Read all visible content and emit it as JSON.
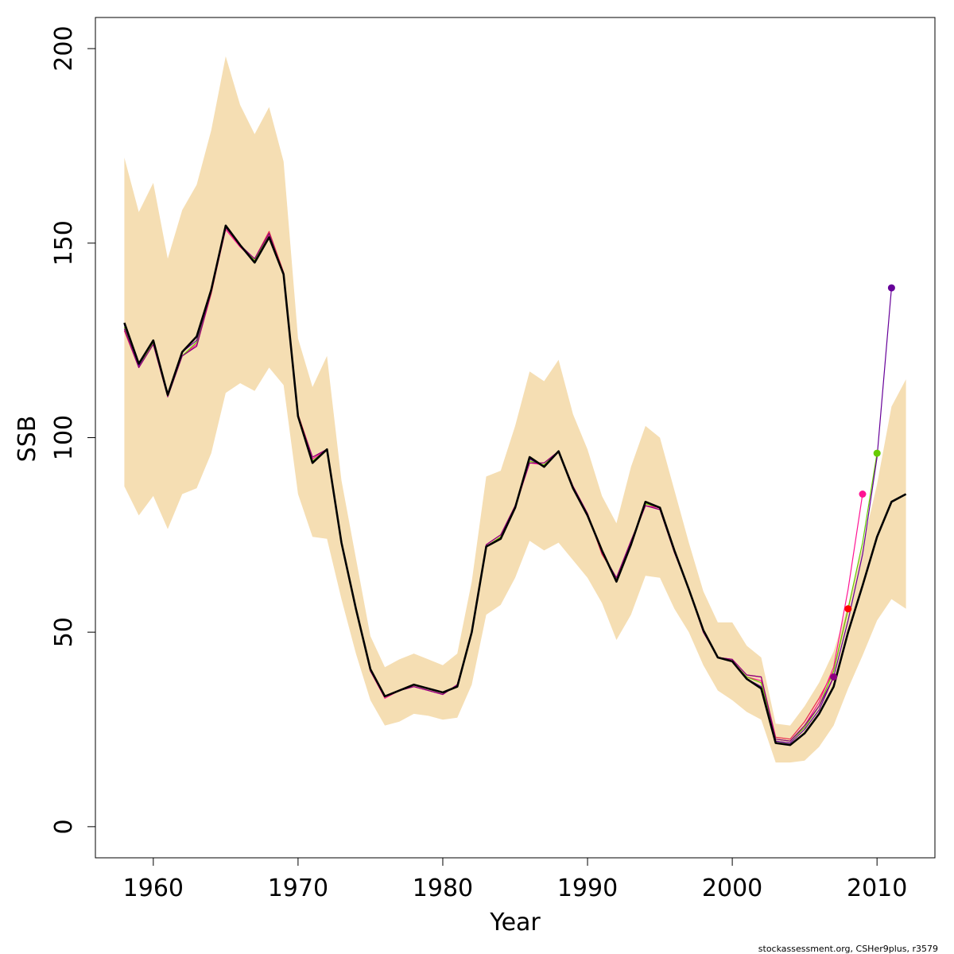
{
  "chart_data": {
    "type": "line",
    "xlabel": "Year",
    "ylabel": "SSB",
    "xlim": [
      1956,
      2014
    ],
    "ylim": [
      -8,
      208
    ],
    "x_ticks": [
      1960,
      1970,
      1980,
      1990,
      2000,
      2010
    ],
    "y_ticks": [
      0,
      50,
      100,
      150,
      200
    ],
    "credit": "stockassessment.org, CSHer9plus, r3579",
    "colors": {
      "band": "#f5deb3",
      "main": "#000000",
      "retro": "#e8254f"
    },
    "years": [
      1958,
      1959,
      1960,
      1961,
      1962,
      1963,
      1964,
      1965,
      1966,
      1967,
      1968,
      1969,
      1970,
      1971,
      1972,
      1973,
      1974,
      1975,
      1976,
      1977,
      1978,
      1979,
      1980,
      1981,
      1982,
      1983,
      1984,
      1985,
      1986,
      1987,
      1988,
      1989,
      1990,
      1991,
      1992,
      1993,
      1994,
      1995,
      1996,
      1997,
      1998,
      1999,
      2000,
      2001,
      2002,
      2003,
      2004,
      2005,
      2006,
      2007,
      2008,
      2009,
      2010,
      2011,
      2012
    ],
    "ssb": [
      129.5,
      119,
      125,
      111,
      122,
      126,
      138,
      154.5,
      149.5,
      145,
      151.5,
      142,
      105.5,
      93.5,
      97,
      73,
      56,
      40.5,
      33.5,
      35,
      36.5,
      35.5,
      34.5,
      36,
      50,
      72,
      74,
      82,
      95,
      92.5,
      96.5,
      87,
      80,
      71,
      63,
      72.5,
      83.5,
      82,
      71,
      61,
      50.5,
      43.5,
      42.5,
      38,
      35.5,
      21.5,
      21,
      24,
      29,
      36,
      50,
      62,
      74.5,
      83.5,
      85.5
    ],
    "ci_upper": [
      172,
      158,
      165.5,
      146,
      158.5,
      165,
      179,
      198,
      185.5,
      178,
      185,
      171,
      125.5,
      113,
      121,
      89,
      69,
      49,
      41,
      43,
      44.5,
      43,
      41.5,
      44.5,
      63,
      90,
      91.5,
      103,
      117,
      114.5,
      120,
      106,
      97,
      85,
      78,
      92.5,
      103,
      100,
      86.5,
      73,
      60.5,
      52.5,
      52.5,
      46.5,
      43.5,
      26.5,
      26,
      31,
      37,
      45,
      57,
      72,
      88,
      108,
      115
    ],
    "ci_lower": [
      87.5,
      80,
      85,
      76.5,
      85.5,
      87,
      96,
      111.5,
      114,
      112,
      118,
      113.5,
      85.5,
      74.5,
      74,
      58.5,
      44.5,
      32.5,
      26,
      27,
      29,
      28.5,
      27.5,
      28,
      36.5,
      54.5,
      57,
      64,
      73.5,
      71,
      73,
      68.5,
      64,
      57.5,
      48,
      54.5,
      64.5,
      64,
      56,
      50,
      41.5,
      35,
      32.5,
      29.5,
      27.5,
      16.5,
      16.5,
      17,
      20.5,
      26,
      35.5,
      44,
      53,
      58.5,
      56
    ],
    "series": [
      {
        "color": "#e8254f",
        "years": [
          1958,
          1959,
          1960,
          1961,
          1962,
          1963,
          1964,
          1965,
          1966,
          1967,
          1968,
          1969,
          1970,
          1971,
          1972,
          1973,
          1974,
          1975,
          1976,
          1977,
          1978,
          1979,
          1980,
          1981,
          1982,
          1983,
          1984,
          1985,
          1986,
          1987,
          1988,
          1989,
          1990,
          1991,
          1992,
          1993,
          1994,
          1995,
          1996,
          1997,
          1998,
          1999,
          2000,
          2001,
          2002,
          2003,
          2004,
          2005,
          2006,
          2007,
          2008
        ],
        "values": [
          127.5,
          118,
          124,
          110.5,
          121,
          123.5,
          137,
          154,
          149,
          146,
          153,
          142.5,
          106,
          95,
          97,
          73,
          56,
          40,
          33.5,
          35,
          36,
          35,
          34,
          36.5,
          50,
          72.5,
          75,
          82.5,
          93.5,
          93.5,
          96.5,
          87.5,
          80.5,
          70,
          64,
          73.5,
          82.5,
          81.5,
          70.5,
          61,
          50,
          43.5,
          43,
          39,
          38.5,
          23,
          22.5,
          27,
          33,
          40,
          56
        ]
      },
      {
        "color": "#ff1493",
        "years": [
          1958,
          1959,
          1960,
          1961,
          1962,
          1963,
          1964,
          1965,
          1966,
          1967,
          1968,
          1969,
          1970,
          1971,
          1972,
          1973,
          1974,
          1975,
          1976,
          1977,
          1978,
          1979,
          1980,
          1981,
          1982,
          1983,
          1984,
          1985,
          1986,
          1987,
          1988,
          1989,
          1990,
          1991,
          1992,
          1993,
          1994,
          1995,
          1996,
          1997,
          1998,
          1999,
          2000,
          2001,
          2002,
          2003,
          2004,
          2005,
          2006,
          2007,
          2008,
          2009
        ],
        "values": [
          128,
          118.5,
          124.5,
          110.5,
          121,
          124,
          137.5,
          153.5,
          149,
          145.5,
          152,
          142,
          105.5,
          94.5,
          97,
          73,
          56,
          40,
          33,
          35,
          36,
          35,
          34,
          36.5,
          50,
          72,
          74.5,
          82,
          93.5,
          93,
          96.5,
          87.5,
          80.5,
          70.5,
          63.5,
          73,
          82.5,
          82,
          70.5,
          61,
          50,
          43.5,
          42.5,
          38.5,
          37.5,
          22.5,
          22,
          26,
          32,
          41,
          61,
          85.5
        ]
      },
      {
        "color": "#66cc00",
        "years": [
          1958,
          1959,
          1960,
          1961,
          1962,
          1963,
          1964,
          1965,
          1966,
          1967,
          1968,
          1969,
          1970,
          1971,
          1972,
          1973,
          1974,
          1975,
          1976,
          1977,
          1978,
          1979,
          1980,
          1981,
          1982,
          1983,
          1984,
          1985,
          1986,
          1987,
          1988,
          1989,
          1990,
          1991,
          1992,
          1993,
          1994,
          1995,
          1996,
          1997,
          1998,
          1999,
          2000,
          2001,
          2002,
          2003,
          2004,
          2005,
          2006,
          2007,
          2008,
          2009,
          2010
        ],
        "values": [
          128.5,
          118.5,
          124.5,
          110.5,
          121,
          124.5,
          137.5,
          154,
          149.5,
          145.5,
          152.5,
          142,
          105.5,
          94,
          97,
          73,
          56,
          40.5,
          33.5,
          35,
          36.5,
          35.5,
          34.5,
          36,
          50,
          72,
          74.5,
          82,
          94,
          93,
          96.5,
          87,
          80,
          71,
          63.5,
          72.5,
          83,
          82,
          71,
          61,
          50.5,
          43.5,
          42.5,
          38.5,
          37,
          22.5,
          22,
          25.5,
          31,
          40,
          56,
          73,
          96
        ]
      },
      {
        "color": "#660099",
        "years": [
          1958,
          1959,
          1960,
          1961,
          1962,
          1963,
          1964,
          1965,
          1966,
          1967,
          1968,
          1969,
          1970,
          1971,
          1972,
          1973,
          1974,
          1975,
          1976,
          1977,
          1978,
          1979,
          1980,
          1981,
          1982,
          1983,
          1984,
          1985,
          1986,
          1987,
          1988,
          1989,
          1990,
          1991,
          1992,
          1993,
          1994,
          1995,
          1996,
          1997,
          1998,
          1999,
          2000,
          2001,
          2002,
          2003,
          2004,
          2005,
          2006,
          2007,
          2008,
          2009,
          2010,
          2011
        ],
        "values": [
          129,
          118.5,
          125,
          111,
          122,
          125,
          138,
          154.5,
          149.5,
          145,
          151.5,
          142,
          105.5,
          93.5,
          97,
          73,
          56,
          40.5,
          33.5,
          35,
          36.5,
          35.5,
          34.5,
          36,
          50,
          72,
          74,
          82,
          94.5,
          92.5,
          96.5,
          87,
          80,
          71,
          63,
          72.5,
          83.5,
          82,
          71,
          61,
          50.5,
          43.5,
          42.5,
          38,
          36,
          22,
          21.5,
          25,
          30,
          38.5,
          53,
          70,
          95,
          138.5
        ]
      },
      {
        "color": "#8b0080",
        "years": [
          1958,
          1959,
          1960,
          1961,
          1962,
          1963,
          1964,
          1965,
          1966,
          1967,
          1968,
          1969,
          1970,
          1971,
          1972,
          1973,
          1974,
          1975,
          1976,
          1977,
          1978,
          1979,
          1980,
          1981,
          1982,
          1983,
          1984,
          1985,
          1986,
          1987,
          1988,
          1989,
          1990,
          1991,
          1992,
          1993,
          1994,
          1995,
          1996,
          1997,
          1998,
          1999,
          2000,
          2001,
          2002,
          2003,
          2004,
          2005,
          2006,
          2007
        ],
        "values": [
          128,
          118,
          124,
          110.5,
          121,
          123.5,
          137.5,
          154,
          149.5,
          146,
          152.5,
          142,
          105.5,
          95,
          97,
          73,
          56,
          40,
          33.5,
          35,
          36,
          35,
          34,
          36.5,
          50,
          72.5,
          75,
          82.5,
          93.5,
          93.5,
          96.5,
          87.5,
          80.5,
          70.5,
          64,
          73.5,
          82.5,
          81.5,
          70.5,
          61,
          50,
          43.5,
          43,
          39,
          38.5,
          22.5,
          22,
          26,
          31,
          38.5
        ]
      }
    ],
    "endpoints": [
      {
        "year": 2007,
        "value": 38.5,
        "color": "#8b0080"
      },
      {
        "year": 2008,
        "value": 56,
        "color": "#ff0000"
      },
      {
        "year": 2009,
        "value": 85.5,
        "color": "#ff1493"
      },
      {
        "year": 2010,
        "value": 96,
        "color": "#66cc00"
      },
      {
        "year": 2011,
        "value": 138.5,
        "color": "#660099"
      }
    ]
  }
}
